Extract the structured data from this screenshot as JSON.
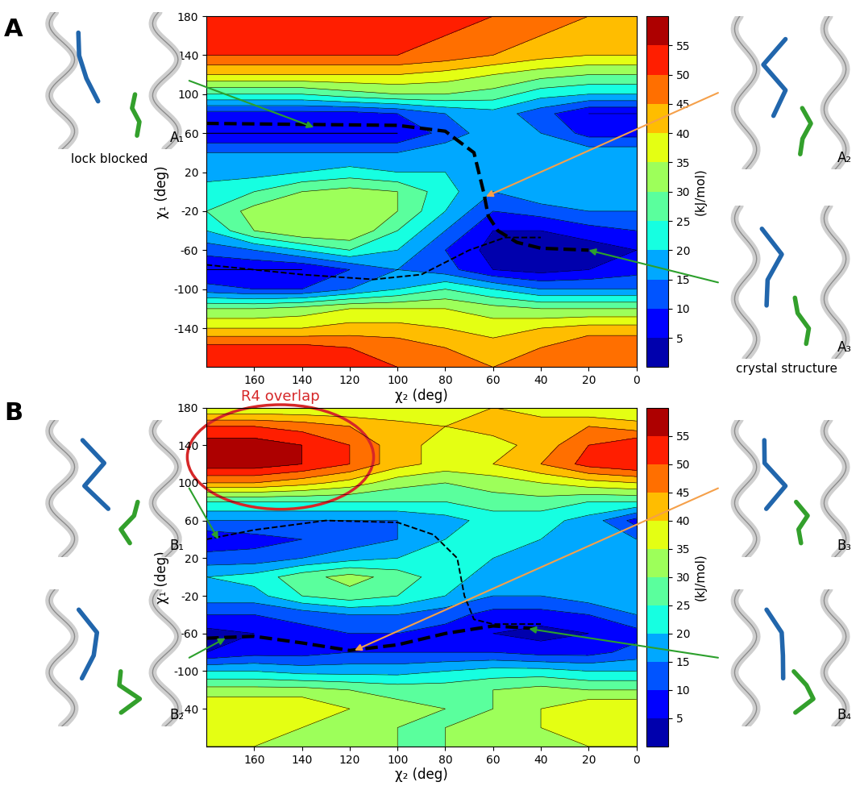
{
  "chart_data": [
    {
      "type": "contour",
      "title": "A",
      "xlabel": "χ₂ (deg)",
      "ylabel": "χ₁ (deg)",
      "x": [
        0,
        20,
        40,
        60,
        80,
        100,
        120,
        140,
        160,
        180
      ],
      "y": [
        -180,
        -160,
        -140,
        -120,
        -100,
        -80,
        -60,
        -40,
        -20,
        0,
        20,
        40,
        60,
        80,
        100,
        120,
        140,
        160,
        180
      ],
      "values": [
        [
          50,
          50,
          48,
          45,
          48,
          50,
          52,
          55,
          55,
          55
        ],
        [
          50,
          50,
          45,
          42,
          45,
          48,
          50,
          52,
          52,
          52
        ],
        [
          42,
          42,
          40,
          38,
          40,
          42,
          42,
          40,
          40,
          40
        ],
        [
          30,
          30,
          30,
          32,
          35,
          35,
          35,
          32,
          30,
          30
        ],
        [
          15,
          15,
          15,
          20,
          25,
          20,
          15,
          10,
          10,
          12
        ],
        [
          8,
          5,
          3,
          5,
          12,
          15,
          10,
          5,
          5,
          5
        ],
        [
          5,
          2,
          2,
          3,
          10,
          20,
          25,
          20,
          15,
          12
        ],
        [
          10,
          8,
          5,
          5,
          15,
          25,
          35,
          35,
          30,
          20
        ],
        [
          15,
          15,
          12,
          10,
          20,
          30,
          35,
          35,
          32,
          25
        ],
        [
          20,
          20,
          20,
          15,
          22,
          30,
          32,
          30,
          25,
          22
        ],
        [
          20,
          20,
          20,
          18,
          20,
          20,
          22,
          20,
          18,
          18
        ],
        [
          18,
          18,
          20,
          20,
          18,
          15,
          15,
          15,
          15,
          15
        ],
        [
          8,
          8,
          15,
          18,
          12,
          5,
          5,
          5,
          5,
          5
        ],
        [
          5,
          5,
          12,
          18,
          15,
          10,
          8,
          8,
          8,
          8
        ],
        [
          20,
          20,
          22,
          28,
          30,
          30,
          28,
          25,
          25,
          25
        ],
        [
          30,
          30,
          32,
          35,
          38,
          40,
          40,
          40,
          40,
          40
        ],
        [
          40,
          40,
          42,
          45,
          48,
          50,
          50,
          50,
          50,
          50
        ],
        [
          45,
          45,
          45,
          48,
          50,
          52,
          55,
          55,
          55,
          55
        ],
        [
          45,
          45,
          48,
          50,
          52,
          55,
          55,
          55,
          55,
          55
        ]
      ],
      "xlim": [
        180,
        0
      ],
      "xticks": [
        160,
        140,
        120,
        100,
        80,
        60,
        40,
        20,
        0
      ],
      "ylim": [
        -180,
        180
      ],
      "yticks": [
        -140,
        -100,
        -60,
        -20,
        20,
        60,
        100,
        140,
        180
      ],
      "colorbar": {
        "label": "(kJ/mol)",
        "range": [
          0,
          60
        ],
        "ticks": [
          5,
          10,
          15,
          20,
          25,
          30,
          35,
          40,
          45,
          50,
          55
        ]
      },
      "series": [
        {
          "x": [
            180,
            140,
            100,
            80,
            68,
            64,
            62,
            58,
            50,
            40,
            20
          ],
          "y": [
            70,
            69,
            68,
            62,
            40,
            0,
            -25,
            -40,
            -52,
            -58,
            -60
          ],
          "color": "#000000",
          "line_style": "dashed"
        },
        {
          "x": [
            180,
            140,
            110,
            90,
            70,
            55,
            40
          ],
          "y": [
            -75,
            -85,
            -90,
            -85,
            -60,
            -47,
            -47
          ],
          "color": "#000000",
          "line_style": "dashed"
        }
      ],
      "annotations": [
        {
          "text": "A₁",
          "caption": "lock blocked",
          "x": 135,
          "y": 66,
          "color": "#2ca02c"
        },
        {
          "text": "A₂",
          "x": 63,
          "y": -5,
          "color": "#f5a04a"
        },
        {
          "text": "A₃",
          "caption": "crystal structure",
          "x": 20,
          "y": -60,
          "color": "#2ca02c"
        }
      ]
    },
    {
      "type": "contour",
      "title": "B",
      "xlabel": "χ₂ (deg)",
      "ylabel": "χ₁ (deg)",
      "x": [
        0,
        20,
        40,
        60,
        80,
        100,
        120,
        140,
        160,
        180
      ],
      "y": [
        -180,
        -160,
        -140,
        -120,
        -100,
        -80,
        -60,
        -40,
        -20,
        0,
        20,
        40,
        60,
        80,
        100,
        120,
        140,
        160,
        180
      ],
      "values": [
        [
          35,
          35,
          35,
          32,
          30,
          30,
          32,
          35,
          35,
          35
        ],
        [
          38,
          38,
          35,
          32,
          30,
          30,
          32,
          35,
          38,
          38
        ],
        [
          40,
          40,
          35,
          30,
          30,
          32,
          35,
          40,
          40,
          40
        ],
        [
          30,
          30,
          32,
          30,
          28,
          28,
          30,
          32,
          32,
          32
        ],
        [
          20,
          20,
          22,
          22,
          20,
          18,
          18,
          18,
          20,
          20
        ],
        [
          12,
          8,
          8,
          10,
          10,
          10,
          10,
          8,
          8,
          5
        ],
        [
          8,
          5,
          3,
          5,
          8,
          10,
          10,
          8,
          5,
          3
        ],
        [
          15,
          10,
          8,
          8,
          12,
          15,
          15,
          12,
          10,
          10
        ],
        [
          20,
          18,
          15,
          15,
          20,
          25,
          28,
          25,
          18,
          18
        ],
        [
          20,
          20,
          18,
          18,
          22,
          28,
          32,
          28,
          22,
          20
        ],
        [
          18,
          20,
          20,
          20,
          22,
          20,
          18,
          15,
          12,
          12
        ],
        [
          15,
          18,
          20,
          22,
          20,
          15,
          12,
          10,
          8,
          6
        ],
        [
          8,
          18,
          22,
          22,
          18,
          15,
          15,
          15,
          15,
          15
        ],
        [
          25,
          25,
          28,
          28,
          25,
          25,
          25,
          25,
          25,
          25
        ],
        [
          40,
          38,
          35,
          32,
          30,
          32,
          38,
          42,
          45,
          45
        ],
        [
          55,
          52,
          45,
          40,
          38,
          42,
          50,
          55,
          58,
          58
        ],
        [
          55,
          50,
          42,
          38,
          38,
          42,
          50,
          55,
          58,
          58
        ],
        [
          42,
          45,
          42,
          42,
          40,
          42,
          45,
          48,
          50,
          50
        ],
        [
          35,
          35,
          38,
          40,
          38,
          35,
          35,
          35,
          35,
          35
        ]
      ],
      "xlim": [
        180,
        0
      ],
      "xticks": [
        160,
        140,
        120,
        100,
        80,
        60,
        40,
        20,
        0
      ],
      "ylim": [
        -180,
        180
      ],
      "yticks": [
        -140,
        -100,
        -60,
        -20,
        20,
        60,
        100,
        140,
        180
      ],
      "colorbar": {
        "label": "(kJ/mol)",
        "range": [
          0,
          60
        ],
        "ticks": [
          5,
          10,
          15,
          20,
          25,
          30,
          35,
          40,
          45,
          50,
          55
        ]
      },
      "series": [
        {
          "x": [
            180,
            160,
            140,
            120,
            100,
            80,
            60,
            40
          ],
          "y": [
            -65,
            -63,
            -70,
            -78,
            -72,
            -60,
            -52,
            -55
          ],
          "color": "#000000",
          "line_style": "dashed"
        },
        {
          "x": [
            180,
            160,
            130,
            100,
            85,
            75,
            72,
            68,
            60,
            40
          ],
          "y": [
            40,
            50,
            60,
            58,
            45,
            20,
            -20,
            -45,
            -50,
            -50
          ],
          "color": "#000000",
          "line_style": "dashed"
        }
      ],
      "annotations": [
        {
          "text": "B₁",
          "x": 175,
          "y": 40,
          "color": "#2ca02c"
        },
        {
          "text": "B₂",
          "x": 172,
          "y": -65,
          "color": "#2ca02c"
        },
        {
          "text": "B₃",
          "x": 118,
          "y": -78,
          "color": "#f5a04a"
        },
        {
          "text": "B₄",
          "x": 45,
          "y": -55,
          "color": "#2ca02c"
        }
      ],
      "highlight": {
        "text": "R4 overlap",
        "x": [
          110,
          188
        ],
        "y": [
          72,
          183
        ],
        "color": "#d62728"
      }
    }
  ]
}
